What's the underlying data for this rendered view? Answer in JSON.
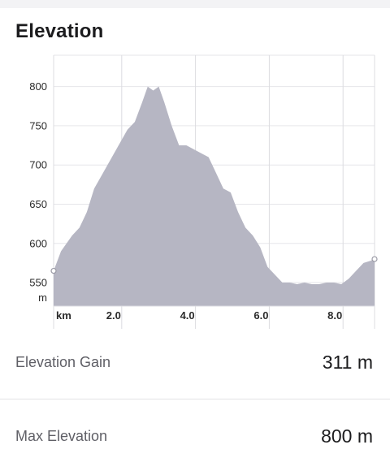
{
  "header": {
    "title": "Elevation"
  },
  "chart_data": {
    "type": "area",
    "xlabel": "",
    "ylabel": "",
    "x_unit_label": "km",
    "y_unit_label": "m",
    "xlim": [
      0,
      8.7
    ],
    "ylim": [
      520,
      840
    ],
    "x_ticks": [
      {
        "value": 2.0,
        "label": "2.0"
      },
      {
        "value": 4.0,
        "label": "4.0"
      },
      {
        "value": 6.0,
        "label": "6.0"
      },
      {
        "value": 8.0,
        "label": "8.0"
      }
    ],
    "y_ticks": [
      {
        "value": 550,
        "label": "550"
      },
      {
        "value": 600,
        "label": "600"
      },
      {
        "value": 650,
        "label": "650"
      },
      {
        "value": 700,
        "label": "700"
      },
      {
        "value": 750,
        "label": "750"
      },
      {
        "value": 800,
        "label": "800"
      }
    ],
    "grid": true,
    "fill_color": "#b6b6c3",
    "series": [
      {
        "x": [
          0.0,
          0.2,
          0.5,
          0.7,
          0.9,
          1.1,
          1.4,
          1.7,
          2.0,
          2.2,
          2.4,
          2.55,
          2.7,
          2.85,
          3.0,
          3.2,
          3.4,
          3.6,
          3.8,
          4.0,
          4.2,
          4.4,
          4.6,
          4.8,
          5.0,
          5.2,
          5.4,
          5.6,
          5.8,
          6.0,
          6.2,
          6.4,
          6.6,
          6.8,
          7.0,
          7.2,
          7.4,
          7.6,
          7.8,
          8.0,
          8.2,
          8.4,
          8.6,
          8.7
        ],
        "y": [
          565,
          590,
          610,
          620,
          640,
          670,
          695,
          720,
          745,
          755,
          780,
          800,
          795,
          800,
          780,
          750,
          725,
          725,
          720,
          715,
          710,
          690,
          670,
          665,
          640,
          620,
          610,
          595,
          570,
          560,
          550,
          550,
          548,
          550,
          548,
          548,
          550,
          550,
          548,
          555,
          565,
          575,
          578,
          580
        ]
      }
    ]
  },
  "stats": [
    {
      "label": "Elevation Gain",
      "value": "311 m"
    },
    {
      "label": "Max Elevation",
      "value": "800 m"
    }
  ]
}
